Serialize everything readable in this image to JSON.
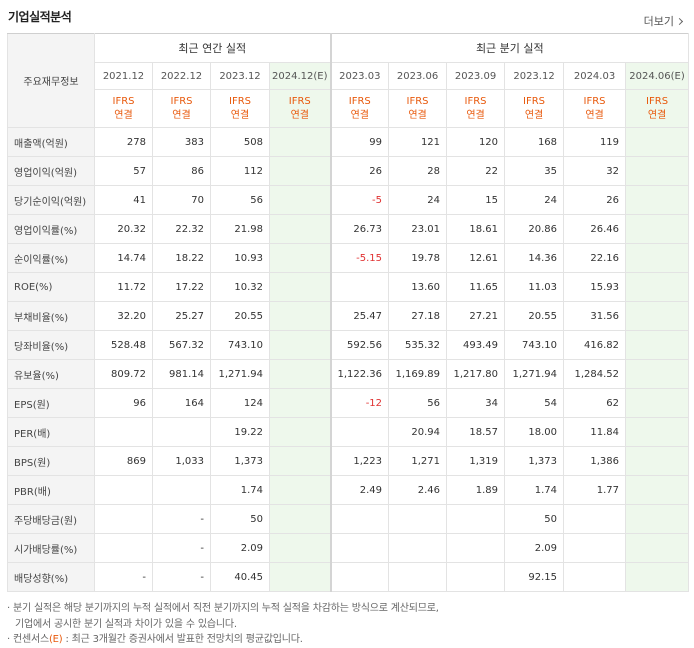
{
  "title": "기업실적분석",
  "more_label": "더보기",
  "header": {
    "label_col": "주요재무정보",
    "annual_group": "최근 연간 실적",
    "quarter_group": "최근 분기 실적",
    "annual_dates": [
      "2021.12",
      "2022.12",
      "2023.12",
      "2024.12(E)"
    ],
    "quarter_dates": [
      "2023.03",
      "2023.06",
      "2023.09",
      "2023.12",
      "2024.03",
      "2024.06(E)"
    ],
    "ifrs_top": "IFRS",
    "ifrs_bottom": "연결"
  },
  "rows": [
    {
      "label": "매출액(억원)",
      "values": [
        "278",
        "383",
        "508",
        "",
        "99",
        "121",
        "120",
        "168",
        "119",
        ""
      ]
    },
    {
      "label": "영업이익(억원)",
      "values": [
        "57",
        "86",
        "112",
        "",
        "26",
        "28",
        "22",
        "35",
        "32",
        ""
      ]
    },
    {
      "label": "당기순이익(억원)",
      "values": [
        "41",
        "70",
        "56",
        "",
        "-5",
        "24",
        "15",
        "24",
        "26",
        ""
      ]
    },
    {
      "label": "영업이익률(%)",
      "values": [
        "20.32",
        "22.32",
        "21.98",
        "",
        "26.73",
        "23.01",
        "18.61",
        "20.86",
        "26.46",
        ""
      ]
    },
    {
      "label": "순이익률(%)",
      "values": [
        "14.74",
        "18.22",
        "10.93",
        "",
        "-5.15",
        "19.78",
        "12.61",
        "14.36",
        "22.16",
        ""
      ]
    },
    {
      "label": "ROE(%)",
      "values": [
        "11.72",
        "17.22",
        "10.32",
        "",
        "",
        "13.60",
        "11.65",
        "11.03",
        "15.93",
        ""
      ]
    },
    {
      "label": "부채비율(%)",
      "values": [
        "32.20",
        "25.27",
        "20.55",
        "",
        "25.47",
        "27.18",
        "27.21",
        "20.55",
        "31.56",
        ""
      ]
    },
    {
      "label": "당좌비율(%)",
      "values": [
        "528.48",
        "567.32",
        "743.10",
        "",
        "592.56",
        "535.32",
        "493.49",
        "743.10",
        "416.82",
        ""
      ]
    },
    {
      "label": "유보율(%)",
      "values": [
        "809.72",
        "981.14",
        "1,271.94",
        "",
        "1,122.36",
        "1,169.89",
        "1,217.80",
        "1,271.94",
        "1,284.52",
        ""
      ]
    },
    {
      "label": "EPS(원)",
      "values": [
        "96",
        "164",
        "124",
        "",
        "-12",
        "56",
        "34",
        "54",
        "62",
        ""
      ]
    },
    {
      "label": "PER(배)",
      "values": [
        "",
        "",
        "19.22",
        "",
        "",
        "20.94",
        "18.57",
        "18.00",
        "11.84",
        ""
      ]
    },
    {
      "label": "BPS(원)",
      "values": [
        "869",
        "1,033",
        "1,373",
        "",
        "1,223",
        "1,271",
        "1,319",
        "1,373",
        "1,386",
        ""
      ]
    },
    {
      "label": "PBR(배)",
      "values": [
        "",
        "",
        "1.74",
        "",
        "2.49",
        "2.46",
        "1.89",
        "1.74",
        "1.77",
        ""
      ]
    },
    {
      "label": "주당배당금(원)",
      "values": [
        "",
        "-",
        "50",
        "",
        "",
        "",
        "",
        "50",
        "",
        ""
      ]
    },
    {
      "label": "시가배당률(%)",
      "values": [
        "",
        "-",
        "2.09",
        "",
        "",
        "",
        "",
        "2.09",
        "",
        ""
      ]
    },
    {
      "label": "배당성향(%)",
      "values": [
        "-",
        "-",
        "40.45",
        "",
        "",
        "",
        "",
        "92.15",
        "",
        ""
      ]
    }
  ],
  "group_starts": [
    3,
    6,
    9,
    13
  ],
  "notes": {
    "line1": "분기 실적은 해당 분기까지의 누적 실적에서 직전 분기까지의 누적 실적을 차감하는 방식으로 계산되므로,",
    "line2": "기업에서 공시한 분기 실적과 차이가 있을 수 있습니다.",
    "line3_prefix": "컨센서스",
    "line3_e": "(E)",
    "line3_rest": ": 최근 3개월간 증권사에서 발표한 전망치의 평균값입니다."
  },
  "colors": {
    "accent": "#e8590c",
    "negative": "#e03131",
    "estimate_bg": "#eef8ec"
  }
}
